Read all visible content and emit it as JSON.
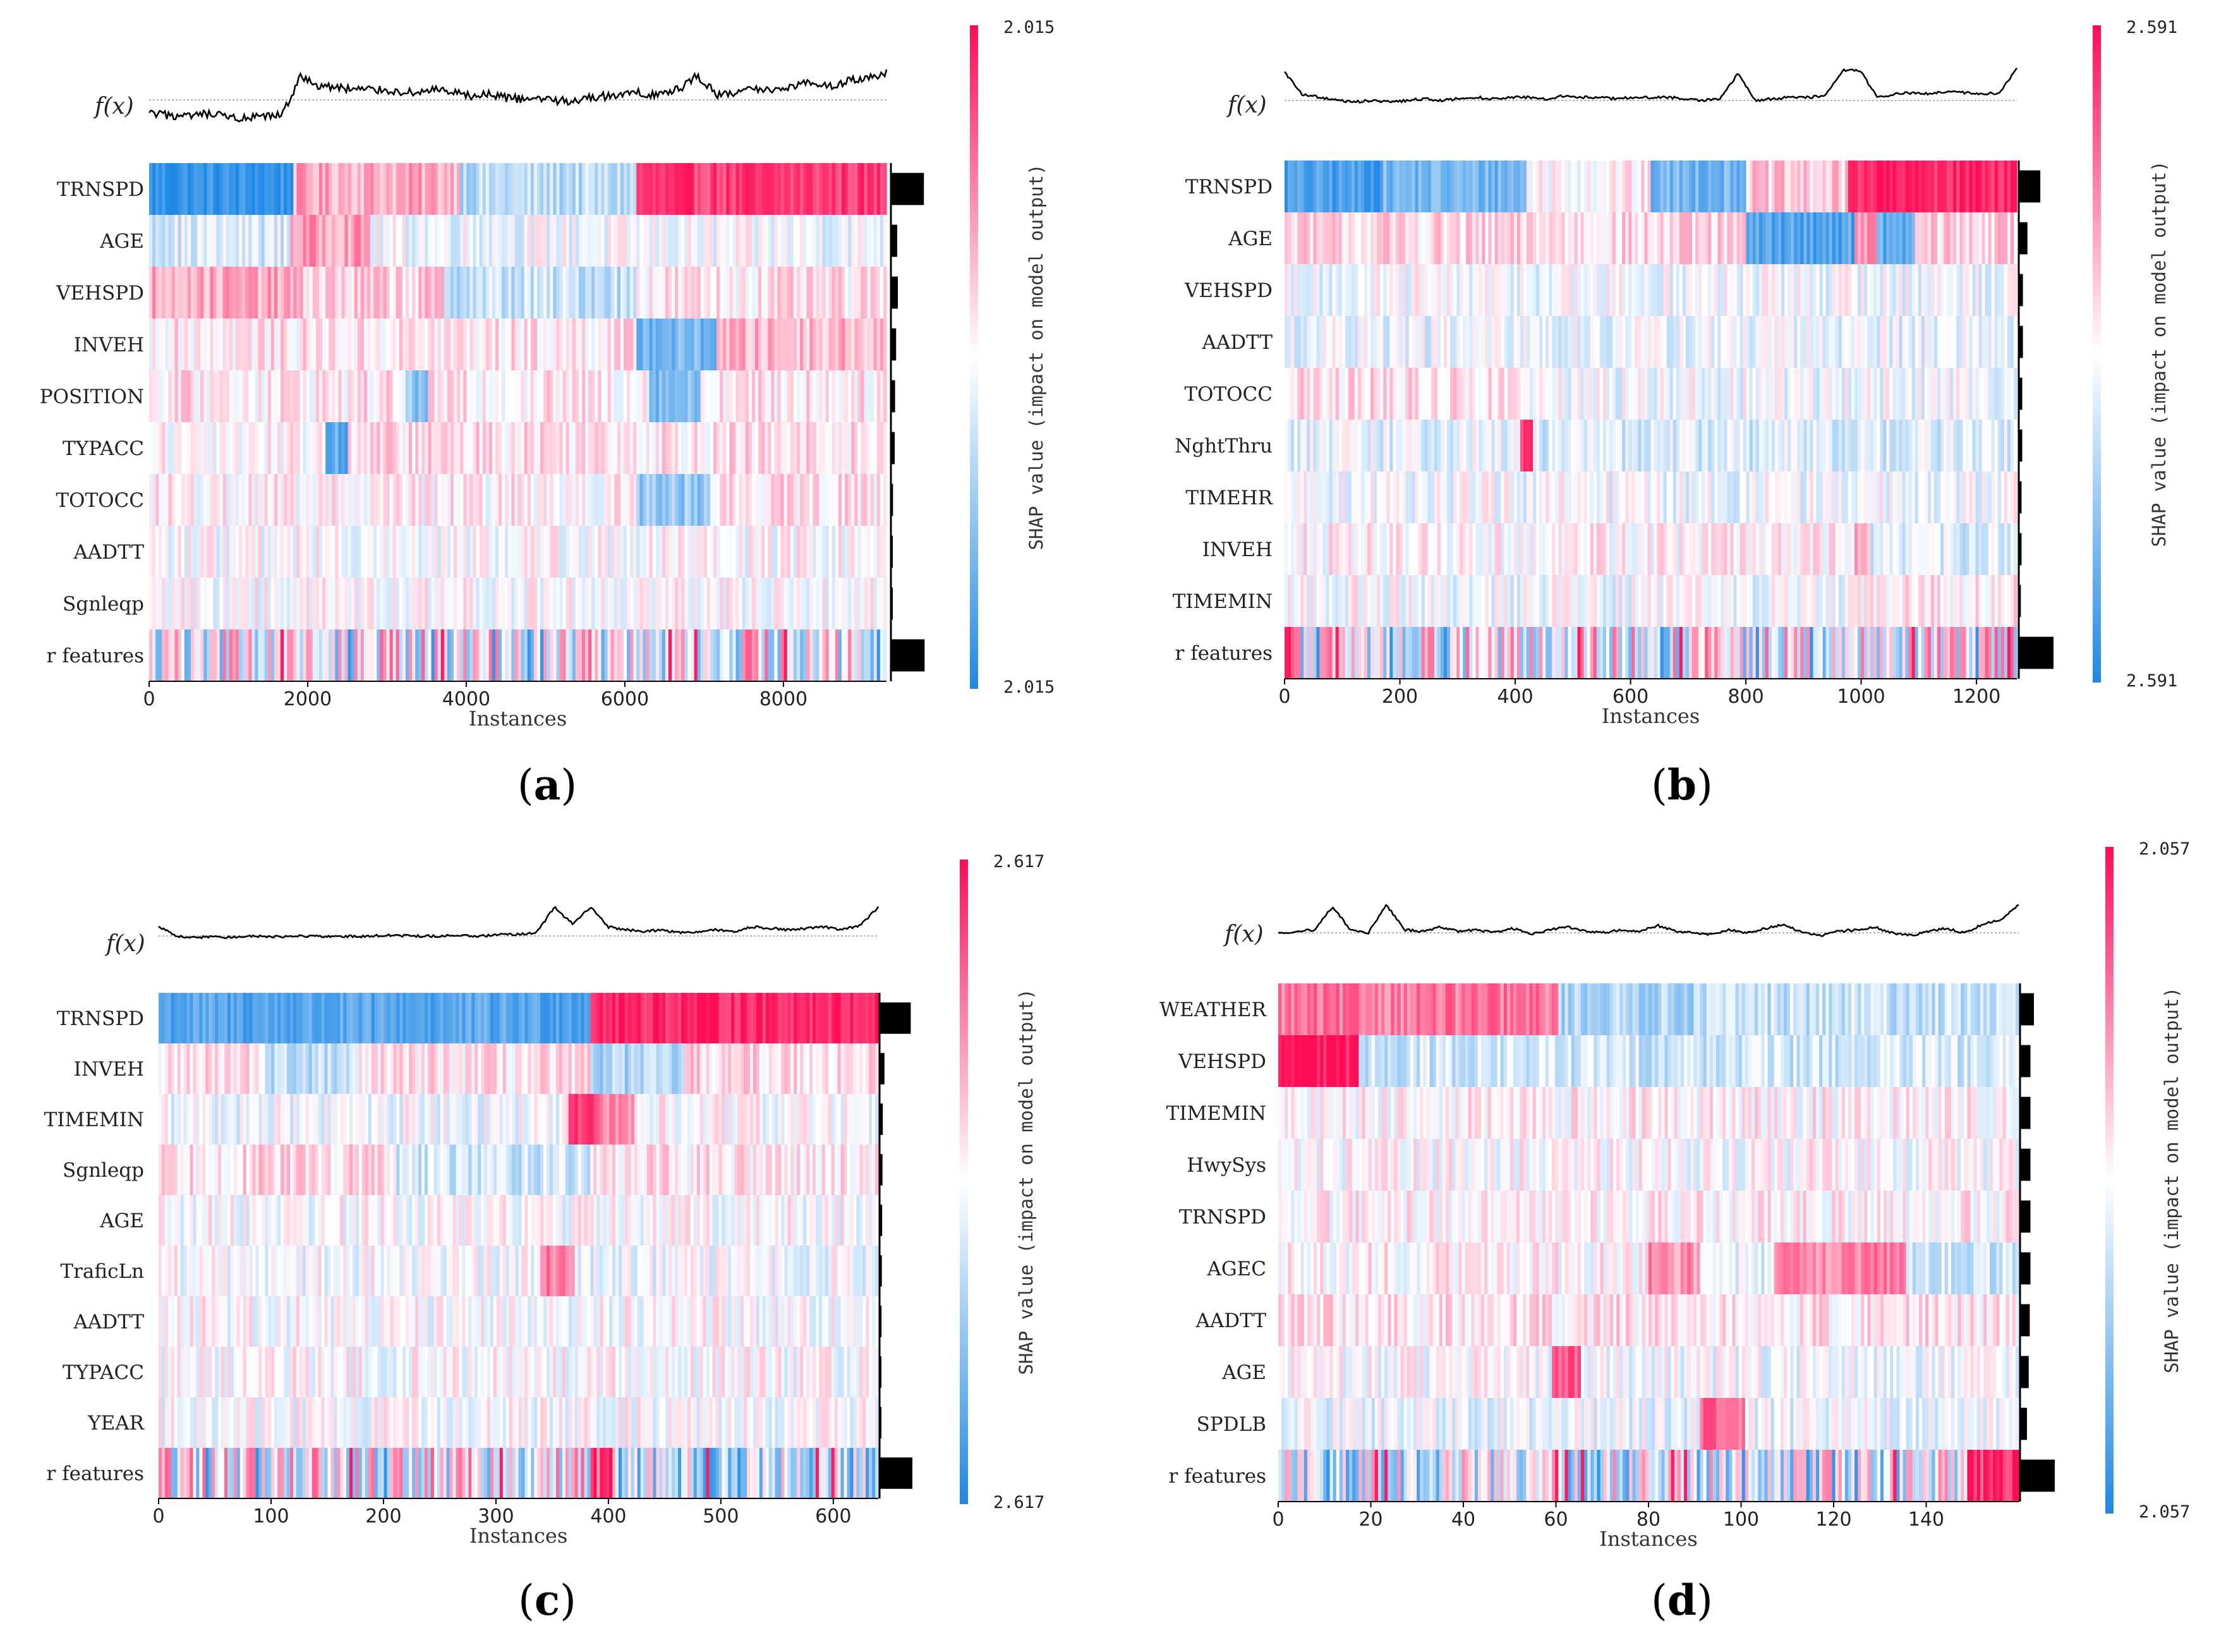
{
  "figure": {
    "panels": [
      {
        "label": "(a)",
        "label_letter": "a",
        "fx_label": "f(x)",
        "x_title": "Instances",
        "cbar_label": "SHAP value (impact on model output)",
        "cbar_max": "2.015",
        "cbar_min": "2.015"
      },
      {
        "label": "(b)",
        "label_letter": "b",
        "fx_label": "f(x)",
        "x_title": "Instances",
        "cbar_label": "SHAP value (impact on model output)",
        "cbar_max": "2.591",
        "cbar_min": "2.591"
      },
      {
        "label": "(c)",
        "label_letter": "c",
        "fx_label": "f(x)",
        "x_title": "Instances",
        "cbar_label": "SHAP value (impact on model output)",
        "cbar_max": "2.617",
        "cbar_min": "2.617"
      },
      {
        "label": "(d)",
        "label_letter": "d",
        "fx_label": "f(x)",
        "x_title": "Instances",
        "cbar_label": "SHAP value (impact on model output)",
        "cbar_max": "2.057",
        "cbar_min": "2.057"
      }
    ]
  },
  "chart_data": [
    {
      "type": "heatmap",
      "panel": "(a)",
      "xlabel": "Instances",
      "n_instances": 9300,
      "xlim": [
        0,
        9300
      ],
      "xticks": [
        0,
        2000,
        4000,
        6000,
        8000
      ],
      "features": [
        "TRNSPD",
        "AGE",
        "VEHSPD",
        "INVEH",
        "POSITION",
        "TYPACC",
        "TOTOCC",
        "AADTT",
        "Sgnleqp",
        "r features"
      ],
      "mean_abs_importance": [
        0.95,
        0.18,
        0.2,
        0.15,
        0.12,
        0.11,
        0.06,
        0.04,
        0.03,
        0.97
      ],
      "colorbar": {
        "label": "SHAP value (impact on model output)",
        "max": "2.015",
        "min": "2.015",
        "high_color": "#ff0d57",
        "low_color": "#1e88e5"
      },
      "fx_curve": [
        -0.4,
        -0.45,
        -0.5,
        -0.42,
        -0.48,
        -0.55,
        -0.5,
        -0.45,
        0.65,
        0.4,
        0.35,
        0.3,
        0.3,
        0.25,
        0.2,
        0.3,
        0.2,
        0.1,
        0.15,
        0.05,
        0.0,
        0.05,
        -0.05,
        0.05,
        0.1,
        0.15,
        0.2,
        0.15,
        0.3,
        0.7,
        0.15,
        0.2,
        0.3,
        0.3,
        0.4,
        0.5,
        0.4,
        0.55,
        0.6,
        0.75
      ]
    },
    {
      "type": "heatmap",
      "panel": "(b)",
      "xlabel": "Instances",
      "n_instances": 1270,
      "xlim": [
        0,
        1270
      ],
      "xticks": [
        0,
        200,
        400,
        600,
        800,
        1000,
        1200
      ],
      "features": [
        "TRNSPD",
        "AGE",
        "VEHSPD",
        "AADTT",
        "TOTOCC",
        "NghtThru",
        "TIMEHR",
        "INVEH",
        "TIMEMIN",
        "r features"
      ],
      "mean_abs_importance": [
        0.62,
        0.25,
        0.12,
        0.12,
        0.1,
        0.1,
        0.08,
        0.08,
        0.06,
        1.0
      ],
      "colorbar": {
        "label": "SHAP value (impact on model output)",
        "max": "2.591",
        "min": "2.591",
        "high_color": "#ff0d57",
        "low_color": "#1e88e5"
      },
      "fx_curve": [
        0.9,
        0.2,
        0.1,
        0.0,
        -0.05,
        0.0,
        -0.05,
        0.0,
        0.05,
        0.0,
        0.05,
        0.1,
        0.05,
        0.1,
        0.1,
        0.05,
        0.15,
        0.1,
        0.1,
        0.05,
        0.1,
        0.1,
        0.1,
        0.05,
        0.0,
        0.05,
        0.85,
        0.0,
        0.05,
        0.1,
        0.1,
        0.15,
        0.95,
        0.95,
        0.1,
        0.2,
        0.25,
        0.2,
        0.3,
        0.25,
        0.2,
        0.25,
        1.0
      ]
    },
    {
      "type": "heatmap",
      "panel": "(c)",
      "xlabel": "Instances",
      "n_instances": 640,
      "xlim": [
        0,
        640
      ],
      "xticks": [
        0,
        100,
        200,
        300,
        400,
        500,
        600
      ],
      "features": [
        "TRNSPD",
        "INVEH",
        "TIMEMIN",
        "Sgnleqp",
        "AGE",
        "TraficLn",
        "AADTT",
        "TYPACC",
        "YEAR",
        "r features"
      ],
      "mean_abs_importance": [
        0.95,
        0.15,
        0.1,
        0.09,
        0.08,
        0.07,
        0.06,
        0.05,
        0.05,
        1.0
      ],
      "colorbar": {
        "label": "SHAP value (impact on model output)",
        "max": "2.617",
        "min": "2.617",
        "high_color": "#ff0d57",
        "low_color": "#1e88e5"
      },
      "fx_curve": [
        0.3,
        0.0,
        -0.05,
        -0.02,
        -0.05,
        0.0,
        -0.03,
        -0.02,
        0.0,
        -0.02,
        0.0,
        -0.02,
        0.0,
        0.02,
        0.0,
        0.0,
        0.0,
        0.02,
        0.0,
        0.05,
        0.05,
        0.1,
        0.95,
        0.4,
        0.95,
        0.3,
        0.2,
        0.15,
        0.2,
        0.1,
        0.15,
        0.2,
        0.15,
        0.3,
        0.25,
        0.2,
        0.25,
        0.3,
        0.2,
        0.35,
        0.95
      ]
    },
    {
      "type": "heatmap",
      "panel": "(d)",
      "xlabel": "Instances",
      "n_instances": 160,
      "xlim": [
        0,
        160
      ],
      "xticks": [
        0,
        20,
        40,
        60,
        80,
        100,
        120,
        140
      ],
      "features": [
        "WEATHER",
        "VEHSPD",
        "TIMEMIN",
        "HwySys",
        "TRNSPD",
        "AGEC",
        "AADTT",
        "AGE",
        "SPDLB",
        "r features"
      ],
      "mean_abs_importance": [
        0.4,
        0.3,
        0.3,
        0.3,
        0.3,
        0.3,
        0.28,
        0.25,
        0.2,
        1.0
      ],
      "colorbar": {
        "label": "SHAP value (impact on model output)",
        "max": "2.057",
        "min": "2.057",
        "high_color": "#ff0d57",
        "low_color": "#1e88e5"
      },
      "fx_curve": [
        0.0,
        0.05,
        0.1,
        0.9,
        0.1,
        0.0,
        0.95,
        0.1,
        0.05,
        0.2,
        0.05,
        0.1,
        0.0,
        0.15,
        -0.05,
        0.1,
        0.2,
        0.05,
        0.0,
        0.1,
        0.05,
        0.25,
        0.05,
        0.0,
        -0.05,
        0.1,
        0.0,
        0.15,
        0.3,
        0.0,
        -0.1,
        0.05,
        0.1,
        0.2,
        0.0,
        -0.1,
        0.05,
        0.15,
        0.0,
        0.3,
        0.45,
        0.95
      ]
    }
  ]
}
